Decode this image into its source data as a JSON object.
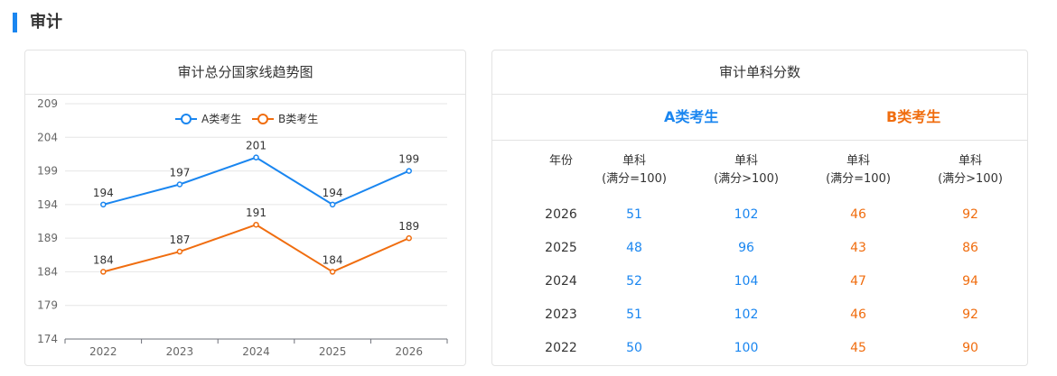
{
  "page": {
    "section_title": "审计"
  },
  "chart_card": {
    "title": "审计总分国家线趋势图"
  },
  "chart_data": {
    "type": "line",
    "categories": [
      "2022",
      "2023",
      "2024",
      "2025",
      "2026"
    ],
    "series": [
      {
        "name": "A类考生",
        "color": "#1a86f0",
        "values": [
          194,
          197,
          201,
          194,
          199
        ]
      },
      {
        "name": "B类考生",
        "color": "#f06d0f",
        "values": [
          184,
          187,
          191,
          184,
          189
        ]
      }
    ],
    "y_ticks": [
      174,
      179,
      184,
      189,
      194,
      199,
      204,
      209
    ],
    "ylim": [
      174,
      209
    ],
    "grid": true,
    "legend_position": "top-center"
  },
  "table_card": {
    "title": "审计单科分数",
    "group_a": "A类考生",
    "group_b": "B类考生",
    "columns": [
      {
        "line1": "年份",
        "line2": ""
      },
      {
        "line1": "单科",
        "line2": "(满分=100)"
      },
      {
        "line1": "单科",
        "line2": "(满分>100)"
      },
      {
        "line1": "单科",
        "line2": "(满分=100)"
      },
      {
        "line1": "单科",
        "line2": "(满分>100)"
      }
    ],
    "rows": [
      [
        "2026",
        "51",
        "102",
        "46",
        "92"
      ],
      [
        "2025",
        "48",
        "96",
        "43",
        "86"
      ],
      [
        "2024",
        "52",
        "104",
        "47",
        "94"
      ],
      [
        "2023",
        "51",
        "102",
        "46",
        "92"
      ],
      [
        "2022",
        "50",
        "100",
        "45",
        "90"
      ]
    ]
  }
}
